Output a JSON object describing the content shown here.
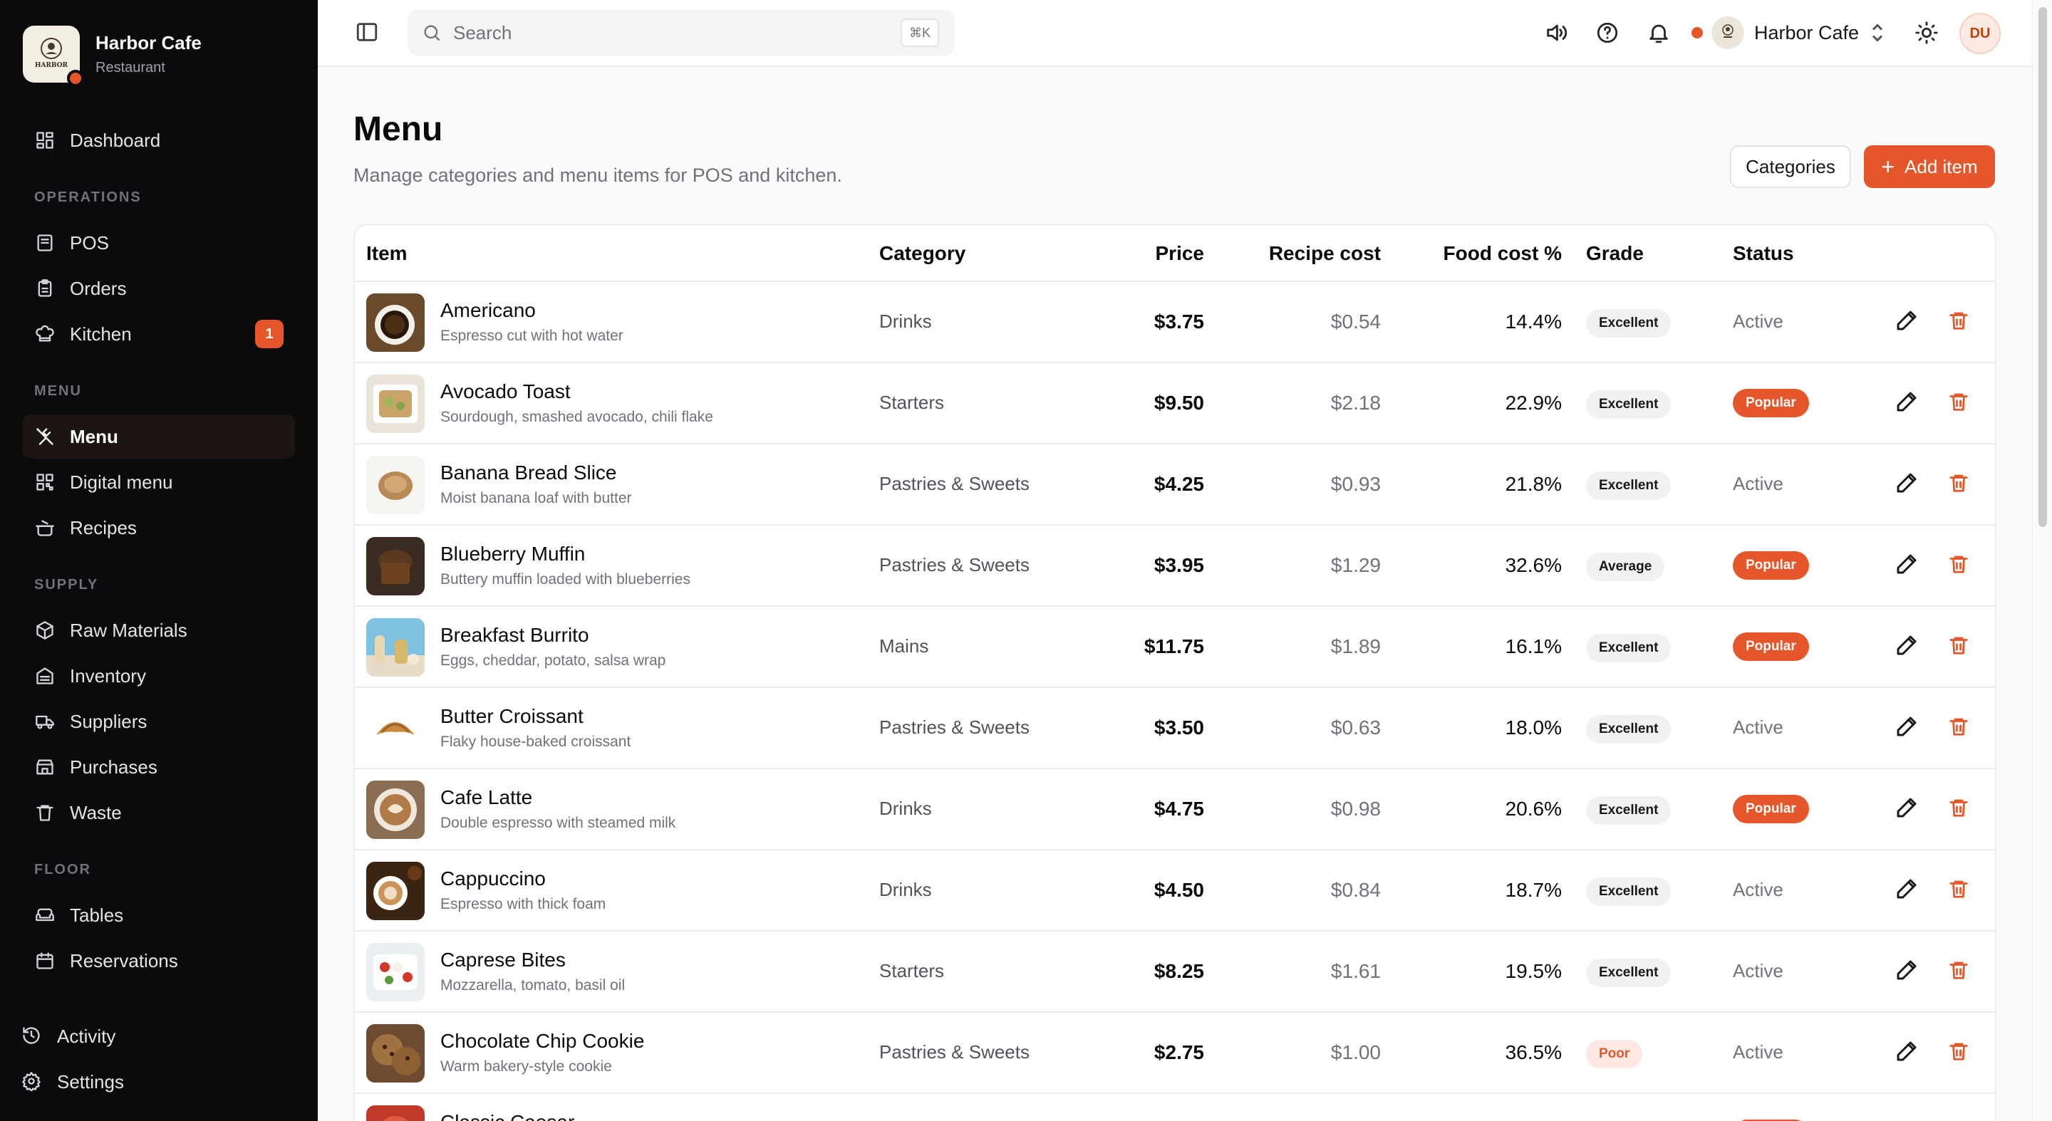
{
  "app": {
    "name": "Harbor Cafe",
    "type": "Restaurant",
    "logo_text": "HARBOR"
  },
  "sidebar": {
    "dashboard": "Dashboard",
    "sections": {
      "operations": "OPERATIONS",
      "menu": "MENU",
      "supply": "SUPPLY",
      "floor": "FLOOR"
    },
    "items": {
      "pos": "POS",
      "orders": "Orders",
      "kitchen": "Kitchen",
      "kitchen_badge": "1",
      "menu": "Menu",
      "digital_menu": "Digital menu",
      "recipes": "Recipes",
      "raw_materials": "Raw Materials",
      "inventory": "Inventory",
      "suppliers": "Suppliers",
      "purchases": "Purchases",
      "waste": "Waste",
      "tables": "Tables",
      "reservations": "Reservations"
    },
    "bottom": {
      "activity": "Activity",
      "settings": "Settings"
    }
  },
  "topbar": {
    "search_placeholder": "Search",
    "shortcut": "⌘K",
    "store_name": "Harbor Cafe",
    "avatar_initials": "DU"
  },
  "page": {
    "title": "Menu",
    "subtitle": "Manage categories and menu items for POS and kitchen.",
    "categories_button": "Categories",
    "add_button": "Add item"
  },
  "table": {
    "headers": {
      "item": "Item",
      "category": "Category",
      "price": "Price",
      "recipe_cost": "Recipe cost",
      "food_cost": "Food cost %",
      "grade": "Grade",
      "status": "Status"
    },
    "rows": [
      {
        "name": "Americano",
        "desc": "Espresso cut with hot water",
        "category": "Drinks",
        "price": "$3.75",
        "cost": "$0.54",
        "food": "14.4%",
        "grade": "Excellent",
        "status": "Active",
        "thumb": "coffee-dark"
      },
      {
        "name": "Avocado Toast",
        "desc": "Sourdough, smashed avocado, chili flake",
        "category": "Starters",
        "price": "$9.50",
        "cost": "$2.18",
        "food": "22.9%",
        "grade": "Excellent",
        "status": "Popular",
        "thumb": "toast"
      },
      {
        "name": "Banana Bread Slice",
        "desc": "Moist banana loaf with butter",
        "category": "Pastries & Sweets",
        "price": "$4.25",
        "cost": "$0.93",
        "food": "21.8%",
        "grade": "Excellent",
        "status": "Active",
        "thumb": "bread"
      },
      {
        "name": "Blueberry Muffin",
        "desc": "Buttery muffin loaded with blueberries",
        "category": "Pastries & Sweets",
        "price": "$3.95",
        "cost": "$1.29",
        "food": "32.6%",
        "grade": "Average",
        "status": "Popular",
        "thumb": "muffin"
      },
      {
        "name": "Breakfast Burrito",
        "desc": "Eggs, cheddar, potato, salsa wrap",
        "category": "Mains",
        "price": "$11.75",
        "cost": "$1.89",
        "food": "16.1%",
        "grade": "Excellent",
        "status": "Popular",
        "thumb": "burrito"
      },
      {
        "name": "Butter Croissant",
        "desc": "Flaky house-baked croissant",
        "category": "Pastries & Sweets",
        "price": "$3.50",
        "cost": "$0.63",
        "food": "18.0%",
        "grade": "Excellent",
        "status": "Active",
        "thumb": "croissant"
      },
      {
        "name": "Cafe Latte",
        "desc": "Double espresso with steamed milk",
        "category": "Drinks",
        "price": "$4.75",
        "cost": "$0.98",
        "food": "20.6%",
        "grade": "Excellent",
        "status": "Popular",
        "thumb": "latte"
      },
      {
        "name": "Cappuccino",
        "desc": "Espresso with thick foam",
        "category": "Drinks",
        "price": "$4.50",
        "cost": "$0.84",
        "food": "18.7%",
        "grade": "Excellent",
        "status": "Active",
        "thumb": "cappuccino"
      },
      {
        "name": "Caprese Bites",
        "desc": "Mozzarella, tomato, basil oil",
        "category": "Starters",
        "price": "$8.25",
        "cost": "$1.61",
        "food": "19.5%",
        "grade": "Excellent",
        "status": "Active",
        "thumb": "caprese"
      },
      {
        "name": "Chocolate Chip Cookie",
        "desc": "Warm bakery-style cookie",
        "category": "Pastries & Sweets",
        "price": "$2.75",
        "cost": "$1.00",
        "food": "36.5%",
        "grade": "Poor",
        "status": "Active",
        "thumb": "cookie"
      },
      {
        "name": "Classic Caesar",
        "desc": "",
        "category": "",
        "price": "",
        "cost": "",
        "food": "",
        "grade": "",
        "status": "Popular",
        "thumb": "salad"
      }
    ]
  },
  "colors": {
    "accent": "#e5572a",
    "sidebar_bg": "#0b0b0d"
  }
}
